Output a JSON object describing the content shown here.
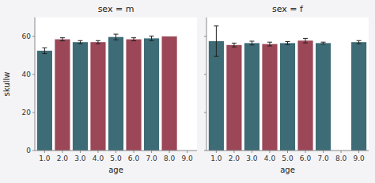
{
  "chart_data": [
    {
      "type": "bar",
      "title": "sex = m",
      "xlabel": "age",
      "ylabel": "skullw",
      "x": [
        1.0,
        2.0,
        3.0,
        4.0,
        5.0,
        6.0,
        7.0,
        8.0
      ],
      "values": [
        52.5,
        58.5,
        57.0,
        57.0,
        59.7,
        58.5,
        59.0,
        60.0
      ],
      "errors": [
        1.5,
        0.8,
        0.8,
        0.8,
        1.5,
        0.8,
        1.2,
        0.0
      ],
      "colors": [
        "#3d6b76",
        "#9b4757",
        "#3d6b76",
        "#9b4757",
        "#3d6b76",
        "#9b4757",
        "#3d6b76",
        "#9b4757"
      ],
      "xlim": [
        0.45,
        9.55
      ],
      "xticks": [
        {
          "value": 1.0,
          "label": "1.0"
        },
        {
          "value": 2.0,
          "label": "2.0"
        },
        {
          "value": 3.0,
          "label": "3.0"
        },
        {
          "value": 4.0,
          "label": "4.0"
        },
        {
          "value": 5.0,
          "label": "5.0"
        },
        {
          "value": 6.0,
          "label": "6.0"
        },
        {
          "value": 7.0,
          "label": "7.0"
        },
        {
          "value": 8.0,
          "label": "8.0"
        },
        {
          "value": 9.0,
          "label": "9.0"
        }
      ],
      "ylim": [
        0,
        70
      ],
      "yticks": [
        0,
        20,
        40,
        60
      ],
      "grid": false
    },
    {
      "type": "bar",
      "title": "sex = f",
      "xlabel": "age",
      "x": [
        1.0,
        2.0,
        3.0,
        4.0,
        5.0,
        6.0,
        7.0,
        9.0
      ],
      "values": [
        57.5,
        55.5,
        56.5,
        56.0,
        56.5,
        57.8,
        56.5,
        57.0
      ],
      "errors": [
        8.0,
        1.0,
        1.0,
        1.0,
        0.8,
        1.2,
        0.5,
        0.8
      ],
      "colors": [
        "#3d6b76",
        "#9b4757",
        "#3d6b76",
        "#9b4757",
        "#3d6b76",
        "#9b4757",
        "#3d6b76",
        "#3d6b76"
      ],
      "xlim": [
        0.45,
        9.55
      ],
      "xticks": [
        {
          "value": 1.0,
          "label": "1.0"
        },
        {
          "value": 2.0,
          "label": "2.0"
        },
        {
          "value": 3.0,
          "label": "3.0"
        },
        {
          "value": 4.0,
          "label": "4.0"
        },
        {
          "value": 5.0,
          "label": "5.0"
        },
        {
          "value": 6.0,
          "label": "6.0"
        },
        {
          "value": 7.0,
          "label": "7.0"
        },
        {
          "value": 8.0,
          "label": "8.0"
        },
        {
          "value": 9.0,
          "label": "9.0"
        }
      ],
      "ylim": [
        0,
        70
      ],
      "yticks": [
        0,
        20,
        40,
        60
      ],
      "grid": false,
      "tick_labels": "x"
    }
  ]
}
